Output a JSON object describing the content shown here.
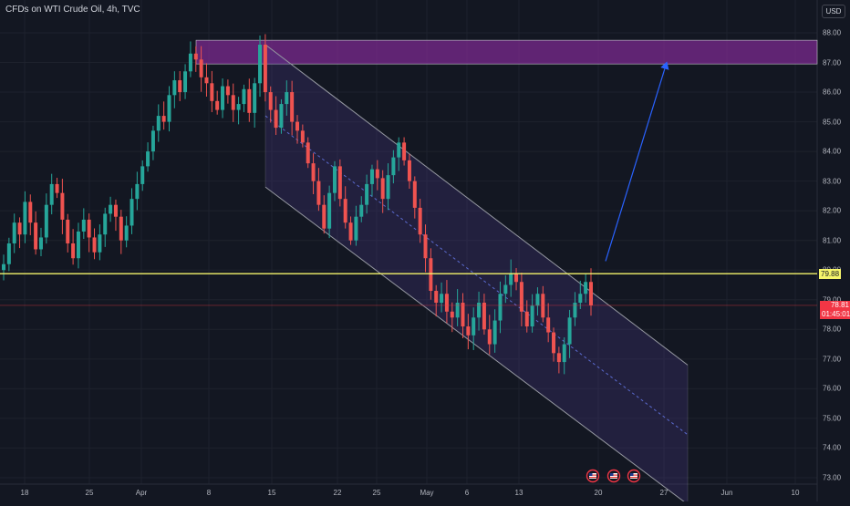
{
  "header": {
    "title": "CFDs on WTI Crude Oil, 4h, TVC",
    "currency": "USD"
  },
  "colors": {
    "background": "#131722",
    "grid": "#1e222d",
    "up": "#26a69a",
    "down": "#ef5350",
    "level_line": "#f5f56b",
    "last_price": "#f23645",
    "channel": "#9598a1",
    "zone": "#7b2a8f",
    "arrow": "#2962ff"
  },
  "price_tags": {
    "level": "79.88",
    "last_price": "78.81",
    "countdown": "01:45:01"
  },
  "chart_data": {
    "type": "candlestick",
    "title": "CFDs on WTI Crude Oil, 4h, TVC",
    "ylim": [
      72.8,
      88.4
    ],
    "y_ticks": [
      "73.00",
      "74.00",
      "75.00",
      "76.00",
      "77.00",
      "78.00",
      "79.00",
      "80.00",
      "81.00",
      "82.00",
      "83.00",
      "84.00",
      "85.00",
      "86.00",
      "87.00",
      "88.00"
    ],
    "x_ticks": [
      "18",
      "25",
      "Apr",
      "8",
      "15",
      "22",
      "25",
      "May",
      "6",
      "13",
      "20",
      "27",
      "Jun",
      "10"
    ],
    "horizontal_level": 79.88,
    "last_price": 78.81,
    "supply_zone": [
      86.95,
      87.75
    ],
    "legend": "none",
    "grid": true,
    "event_icons": [
      "flag-us-icon",
      "flag-us-icon",
      "flag-us-icon"
    ],
    "price_series": [
      80.2,
      80.9,
      81.6,
      81.2,
      82.3,
      81.6,
      80.7,
      81.1,
      82.2,
      82.9,
      82.6,
      81.7,
      80.9,
      80.4,
      81.3,
      81.7,
      81.1,
      80.6,
      81.2,
      81.9,
      82.2,
      81.8,
      81.0,
      81.5,
      82.4,
      82.9,
      83.5,
      84.0,
      84.7,
      85.2,
      85.0,
      85.9,
      86.4,
      86.0,
      86.7,
      87.3,
      87.1,
      86.5,
      86.3,
      85.7,
      85.4,
      86.2,
      85.9,
      85.4,
      85.6,
      86.1,
      85.3,
      86.3,
      87.6,
      86.0,
      85.4,
      84.8,
      85.6,
      86.0,
      85.0,
      84.7,
      84.3,
      83.6,
      83.0,
      82.2,
      81.4,
      82.6,
      83.5,
      82.4,
      81.6,
      81.0,
      81.8,
      82.2,
      82.9,
      83.4,
      83.1,
      82.4,
      83.2,
      83.8,
      84.3,
      83.7,
      83.0,
      82.1,
      81.2,
      80.4,
      79.3,
      78.9,
      79.2,
      78.6,
      78.4,
      78.9,
      78.1,
      77.8,
      78.4,
      78.9,
      78.0,
      77.5,
      78.3,
      79.2,
      79.5,
      79.9,
      79.6,
      78.6,
      78.1,
      78.8,
      79.2,
      78.4,
      77.9,
      77.2,
      76.9,
      77.5,
      78.4,
      78.9,
      79.2,
      79.6,
      78.81
    ]
  }
}
